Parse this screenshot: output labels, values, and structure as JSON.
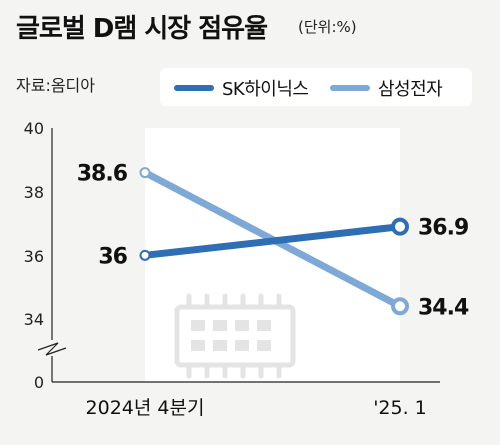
{
  "header": {
    "title": "글로벌 D램 시장 점유율",
    "unit": "(단위:%)",
    "source": "자료:옴디아"
  },
  "chart_data": {
    "type": "line",
    "title": "글로벌 D램 시장 점유율",
    "unit": "(단위:%)",
    "categories": [
      "2024년 4분기",
      "'25. 1"
    ],
    "series": [
      {
        "name": "SK하이닉스",
        "values": [
          36,
          36.9
        ],
        "labels": [
          "36",
          "36.9"
        ],
        "color": "#2e6eb5"
      },
      {
        "name": "삼성전자",
        "values": [
          38.6,
          34.4
        ],
        "labels": [
          "38.6",
          "34.4"
        ],
        "color": "#7ea8d6"
      }
    ],
    "yticks": [
      "40",
      "38",
      "36",
      "34",
      "0"
    ],
    "ylim": [
      34,
      40
    ],
    "axis_break": true,
    "legend": "top-right",
    "grid": false
  }
}
